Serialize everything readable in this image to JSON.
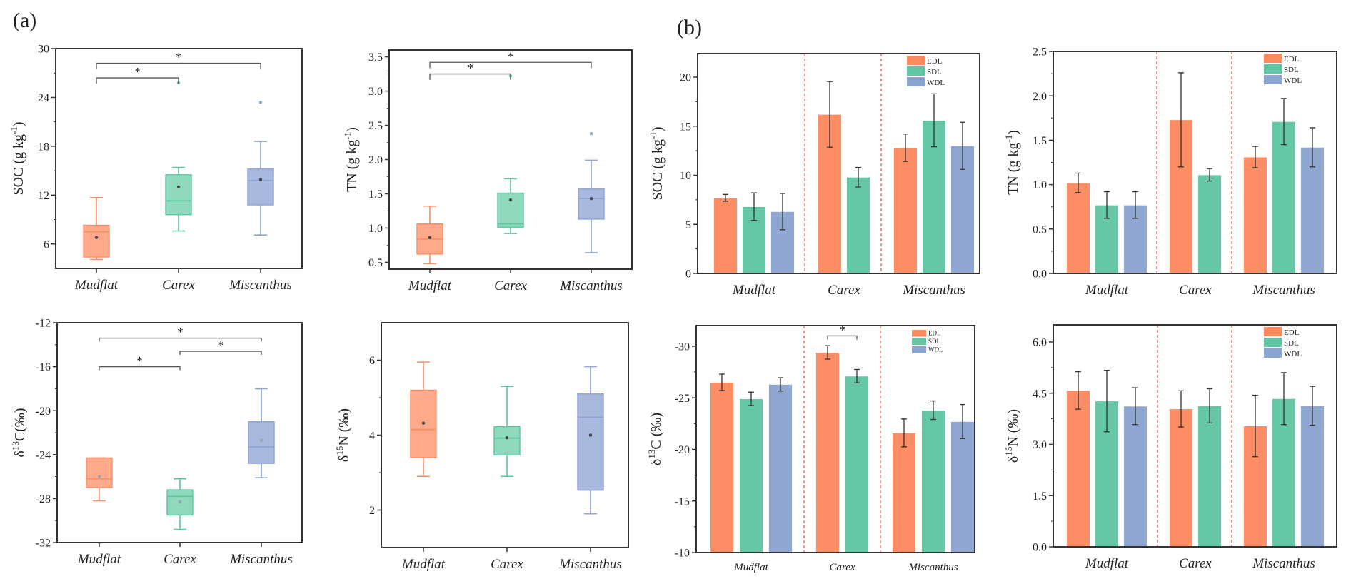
{
  "figure": {
    "panel_a_label": "(a)",
    "panel_b_label": "(b)"
  },
  "colors": {
    "Mudflat_box": "#fda98a",
    "Carex_box": "#8fd9bd",
    "Miscanthus_box": "#a9b8de",
    "Mudflat_line": "#fb8d66",
    "Carex_line": "#5cc6a0",
    "Miscanthus_line": "#8ea3d3",
    "EDL": "#fc8a5f",
    "SDL": "#62c6a2",
    "WDL": "#8ca5cf",
    "separator": "#f05a5a",
    "axis": "#333333"
  },
  "chart_data": [
    {
      "id": "a_soc",
      "type": "boxplot",
      "panel": "a",
      "ylabel": "SOC (g kg-1)",
      "ylabel_main": "SOC (g kg",
      "ylabel_sup": "-1",
      "ylabel_tail": ")",
      "ylim": [
        3,
        30
      ],
      "yticks": [
        6,
        12,
        18,
        24,
        30
      ],
      "categories": [
        "Mudflat",
        "Carex",
        "Miscanthus"
      ],
      "boxes": [
        {
          "min": 4.1,
          "q1": 4.4,
          "median": 7.5,
          "q3": 8.3,
          "max": 11.7,
          "mean": 6.8,
          "outliers": []
        },
        {
          "min": 7.6,
          "q1": 9.6,
          "median": 11.3,
          "q3": 14.5,
          "max": 15.4,
          "mean": 13.0,
          "outliers": [
            25.8
          ]
        },
        {
          "min": 7.1,
          "q1": 10.8,
          "median": 13.8,
          "q3": 15.2,
          "max": 18.6,
          "mean": 13.9,
          "outliers": [
            23.4
          ]
        }
      ],
      "significance": [
        {
          "from": 0,
          "to": 2,
          "label": "*",
          "level": 28.2
        },
        {
          "from": 0,
          "to": 1,
          "label": "*",
          "level": 26.4
        }
      ]
    },
    {
      "id": "a_tn",
      "type": "boxplot",
      "panel": "a",
      "ylabel": "TN (g kg-1)",
      "ylabel_main": "TN (g kg",
      "ylabel_sup": "-1",
      "ylabel_tail": ")",
      "ylim": [
        0.4,
        3.6
      ],
      "yticks": [
        0.5,
        1.0,
        1.5,
        2.0,
        2.5,
        3.0,
        3.5
      ],
      "yticklabels": [
        "0.5",
        "1.0",
        "1.5",
        "2.0",
        "2.5",
        "3.0",
        "3.5"
      ],
      "categories": [
        "Mudflat",
        "Carex",
        "Miscanthus"
      ],
      "boxes": [
        {
          "min": 0.48,
          "q1": 0.62,
          "median": 0.84,
          "q3": 1.06,
          "max": 1.32,
          "mean": 0.86,
          "outliers": []
        },
        {
          "min": 0.92,
          "q1": 1.01,
          "median": 1.06,
          "q3": 1.51,
          "max": 1.72,
          "mean": 1.41,
          "outliers": [
            3.22
          ]
        },
        {
          "min": 0.64,
          "q1": 1.13,
          "median": 1.43,
          "q3": 1.57,
          "max": 1.99,
          "mean": 1.43,
          "outliers": [
            2.38
          ]
        }
      ],
      "significance": [
        {
          "from": 0,
          "to": 2,
          "label": "*",
          "level": 3.42
        },
        {
          "from": 0,
          "to": 1,
          "label": "*",
          "level": 3.25
        }
      ]
    },
    {
      "id": "a_d13c",
      "type": "boxplot",
      "panel": "a",
      "ylabel": "δ13C(‰)",
      "ylabel_pre": "δ",
      "ylabel_sup": "13",
      "ylabel_main": "C(‰)",
      "ylim": [
        -32,
        -12
      ],
      "yticks": [
        -32,
        -28,
        -24,
        -20,
        -16,
        -12
      ],
      "categories": [
        "Mudflat",
        "Carex",
        "Miscanthus"
      ],
      "boxes": [
        {
          "min": -28.2,
          "q1": -27.0,
          "median": -26.2,
          "q3": -24.3,
          "max": -24.3,
          "mean": -26.0,
          "outliers": []
        },
        {
          "min": -30.8,
          "q1": -29.5,
          "median": -27.8,
          "q3": -27.2,
          "max": -26.2,
          "mean": -28.3,
          "outliers": []
        },
        {
          "min": -26.1,
          "q1": -24.8,
          "median": -23.3,
          "q3": -21.0,
          "max": -18.0,
          "mean": -22.7,
          "outliers": []
        }
      ],
      "significance": [
        {
          "from": 0,
          "to": 2,
          "label": "*",
          "level": -13.4
        },
        {
          "from": 1,
          "to": 2,
          "label": "*",
          "level": -14.6
        },
        {
          "from": 0,
          "to": 1,
          "label": "*",
          "level": -16.0
        }
      ]
    },
    {
      "id": "a_d15n",
      "type": "boxplot",
      "panel": "a",
      "ylabel": "δ15N (‰)",
      "ylabel_pre": "δ",
      "ylabel_sup": "15",
      "ylabel_main": "N (‰)",
      "ylim": [
        1,
        7
      ],
      "yticks": [
        2,
        4,
        6
      ],
      "categories": [
        "Mudflat",
        "Carex",
        "Miscanthus"
      ],
      "boxes": [
        {
          "min": 2.9,
          "q1": 3.4,
          "median": 4.15,
          "q3": 5.2,
          "max": 5.95,
          "mean": 4.32,
          "outliers": []
        },
        {
          "min": 2.9,
          "q1": 3.47,
          "median": 3.92,
          "q3": 4.23,
          "max": 5.3,
          "mean": 3.93,
          "outliers": []
        },
        {
          "min": 1.9,
          "q1": 2.53,
          "median": 4.48,
          "q3": 5.1,
          "max": 5.83,
          "mean": 4.0,
          "outliers": []
        }
      ],
      "significance": []
    },
    {
      "id": "b_soc",
      "type": "bar",
      "panel": "b",
      "ylabel": "SOC (g kg-1)",
      "ylabel_main": "SOC (g kg",
      "ylabel_sup": "-1",
      "ylabel_tail": ")",
      "ylim": [
        0,
        22.4
      ],
      "yticks": [
        0,
        5,
        10,
        15,
        20
      ],
      "categories": [
        "Mudflat",
        "Carex",
        "Miscanthus"
      ],
      "series": [
        {
          "name": "EDL",
          "values": [
            7.7,
            16.2,
            12.8
          ],
          "errors": [
            0.35,
            3.35,
            1.4
          ]
        },
        {
          "name": "SDL",
          "values": [
            6.8,
            9.8,
            15.6
          ],
          "errors": [
            1.4,
            1.0,
            2.7
          ]
        },
        {
          "name": "WDL",
          "values": [
            6.3,
            null,
            13.0
          ],
          "errors": [
            1.85,
            null,
            2.4
          ]
        }
      ],
      "legend": [
        "EDL",
        "SDL",
        "WDL"
      ],
      "legend_position": "top-right",
      "significance": []
    },
    {
      "id": "b_tn",
      "type": "bar",
      "panel": "b",
      "ylabel": "TN (g kg-1)",
      "ylabel_main": "TN (g kg",
      "ylabel_sup": "-1",
      "ylabel_tail": ")",
      "ylim": [
        0,
        2.5
      ],
      "yticks": [
        0,
        0.5,
        1.0,
        1.5,
        2.0,
        2.5
      ],
      "yticklabels": [
        "0.0",
        "0.5",
        "1.0",
        "1.5",
        "2.0",
        "2.5"
      ],
      "categories": [
        "Mudflat",
        "Carex",
        "Miscanthus"
      ],
      "series": [
        {
          "name": "EDL",
          "values": [
            1.02,
            1.73,
            1.31
          ],
          "errors": [
            0.11,
            0.53,
            0.12
          ]
        },
        {
          "name": "SDL",
          "values": [
            0.77,
            1.11,
            1.71
          ],
          "errors": [
            0.15,
            0.07,
            0.26
          ]
        },
        {
          "name": "WDL",
          "values": [
            0.77,
            null,
            1.42
          ],
          "errors": [
            0.15,
            null,
            0.22
          ]
        }
      ],
      "legend": [
        "EDL",
        "SDL",
        "WDL"
      ],
      "legend_position": "top-right",
      "significance": []
    },
    {
      "id": "b_d13c",
      "type": "bar",
      "panel": "b",
      "ylabel": "δ13C (‰)",
      "ylabel_pre": "δ",
      "ylabel_sup": "13",
      "ylabel_main": "C (‰)",
      "ylim": [
        -10,
        -32
      ],
      "yticks": [
        -10,
        -15,
        -20,
        -25,
        -30
      ],
      "categories": [
        "Mudflat",
        "Carex",
        "Miscanthus"
      ],
      "series": [
        {
          "name": "EDL",
          "values": [
            -26.5,
            -29.4,
            -21.6
          ],
          "errors": [
            0.8,
            0.65,
            1.35
          ]
        },
        {
          "name": "SDL",
          "values": [
            -24.9,
            -27.1,
            -23.8
          ],
          "errors": [
            0.65,
            0.65,
            0.9
          ]
        },
        {
          "name": "WDL",
          "values": [
            -26.3,
            null,
            -22.7
          ],
          "errors": [
            0.65,
            null,
            1.65
          ]
        }
      ],
      "legend": [
        "EDL",
        "SDL",
        "WDL"
      ],
      "legend_position": "top-right",
      "significance": [
        {
          "category": 1,
          "from_series": 0,
          "to_series": 1,
          "label": "*",
          "level": -31.0
        }
      ]
    },
    {
      "id": "b_d15n",
      "type": "bar",
      "panel": "b",
      "ylabel": "δ15N (‰)",
      "ylabel_pre": "δ",
      "ylabel_sup": "15",
      "ylabel_main": "N (‰)",
      "ylim": [
        0,
        6.5
      ],
      "yticks": [
        0,
        1.5,
        3.0,
        4.5,
        6.0
      ],
      "yticklabels": [
        "0.0",
        "1.5",
        "3.0",
        "4.5",
        "6.0"
      ],
      "categories": [
        "Mudflat",
        "Carex",
        "Miscanthus"
      ],
      "series": [
        {
          "name": "EDL",
          "values": [
            4.58,
            4.04,
            3.54
          ],
          "errors": [
            0.55,
            0.53,
            0.9
          ]
        },
        {
          "name": "SDL",
          "values": [
            4.27,
            4.13,
            4.34
          ],
          "errors": [
            0.9,
            0.5,
            0.76
          ]
        },
        {
          "name": "WDL",
          "values": [
            4.12,
            null,
            4.13
          ],
          "errors": [
            0.54,
            null,
            0.57
          ]
        }
      ],
      "legend": [
        "EDL",
        "SDL",
        "WDL"
      ],
      "legend_position": "top-right",
      "significance": []
    }
  ]
}
